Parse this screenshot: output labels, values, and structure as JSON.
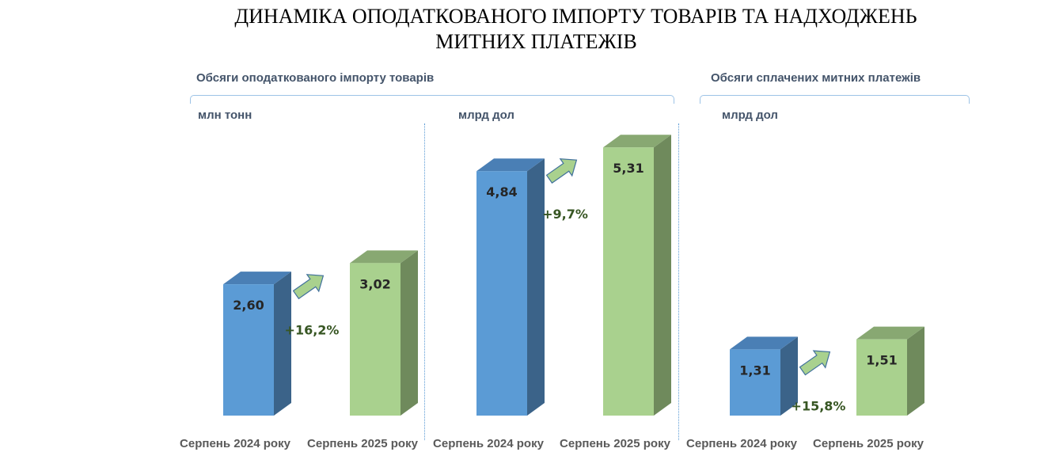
{
  "title_line1": "ДИНАМІКА ОПОДАТКОВАНОГО ІМПОРТУ ТОВАРІВ ТА НАДХОДЖЕНЬ",
  "title_line2": "МИТНИХ ПЛАТЕЖІВ",
  "section_import": "Обсяги оподаткованого імпорту товарів",
  "section_payments": "Обсяги сплачених митних платежів",
  "colors": {
    "bar_2024_front": "#5b9bd5",
    "bar_2024_side": "#3b6389",
    "bar_2024_top": "#4a7fb5",
    "bar_2025_front": "#a9d18e",
    "bar_2025_side": "#6f8a5c",
    "bar_2025_top": "#88a872",
    "arrow_fill": "#a9d18e",
    "arrow_stroke": "#41719c"
  },
  "chart_data": [
    {
      "type": "bar",
      "unit": "млн тонн",
      "categories": [
        "Серпень 2024 року",
        "Серпень 2025 року"
      ],
      "values": [
        2.6,
        3.02
      ],
      "value_labels": [
        "2,60",
        "3,02"
      ],
      "change_label": "+16,2%"
    },
    {
      "type": "bar",
      "unit": "млрд дол",
      "categories": [
        "Серпень 2024 року",
        "Серпень 2025 року"
      ],
      "values": [
        4.84,
        5.31
      ],
      "value_labels": [
        "4,84",
        "5,31"
      ],
      "change_label": "+9,7%"
    },
    {
      "type": "bar",
      "unit": "млрд дол",
      "categories": [
        "Серпень 2024 року",
        "Серпень 2025 року"
      ],
      "values": [
        1.31,
        1.51
      ],
      "value_labels": [
        "1,31",
        "1,51"
      ],
      "change_label": "+15,8%"
    }
  ]
}
